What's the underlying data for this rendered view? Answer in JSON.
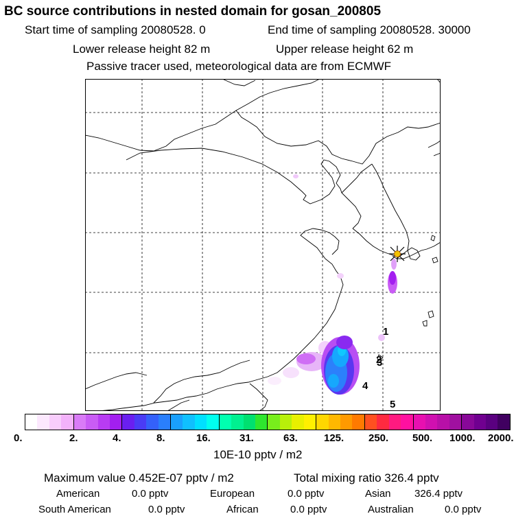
{
  "header": {
    "title": "BC  source contributions in nested domain for gosan_200805",
    "start_time": "Start time of sampling 20080528.     0",
    "end_time": "End time of sampling 20080528. 30000",
    "lower_release": "Lower release height   82 m",
    "upper_release": "Upper release height   62 m",
    "tracer_note": "Passive tracer used, meteorological data are from ECMWF"
  },
  "map": {
    "receptor_marker": "receptor-star",
    "labels": [
      "1",
      "2",
      "3",
      "4",
      "5"
    ]
  },
  "colorbar": {
    "tick_labels": [
      "0.",
      "2.",
      "4.",
      "8.",
      "16.",
      "31.",
      "63.",
      "125.",
      "250.",
      "500.",
      "1000.",
      "2000."
    ],
    "unit": "10E-10 pptv / m2",
    "colors": [
      "#ffffff",
      "#fce8fe",
      "#f8cdfc",
      "#f3b2fa",
      "#d97bf7",
      "#c95cf5",
      "#b83cf3",
      "#a31ff0",
      "#6a1ff0",
      "#4a3cf5",
      "#3461fa",
      "#2a7ffc",
      "#1aa0fd",
      "#10c0fe",
      "#00e0ff",
      "#00ffee",
      "#00ffb0",
      "#00f090",
      "#00e070",
      "#2ee62e",
      "#78ee1c",
      "#b8f00a",
      "#e8f000",
      "#fff000",
      "#ffd700",
      "#ffb800",
      "#ff9a00",
      "#ff7a00",
      "#ff5020",
      "#ff2a40",
      "#ff1a80",
      "#ff10a0",
      "#e810b0",
      "#d010b0",
      "#b810a8",
      "#a010a0",
      "#880898",
      "#700090",
      "#5a0080",
      "#400060"
    ]
  },
  "summary": {
    "maximum": "Maximum value  0.452E-07 pptv / m2",
    "total": "Total mixing ratio     326.4 pptv",
    "american_label": "American",
    "american_value": "0.0 pptv",
    "european_label": "European",
    "european_value": "0.0 pptv",
    "asian_label": "Asian",
    "asian_value": "326.4 pptv",
    "south_american_label": "South American",
    "south_american_value": "0.0 pptv",
    "african_label": "African",
    "african_value": "0.0 pptv",
    "australian_label": "Australian",
    "australian_value": "0.0 pptv"
  }
}
